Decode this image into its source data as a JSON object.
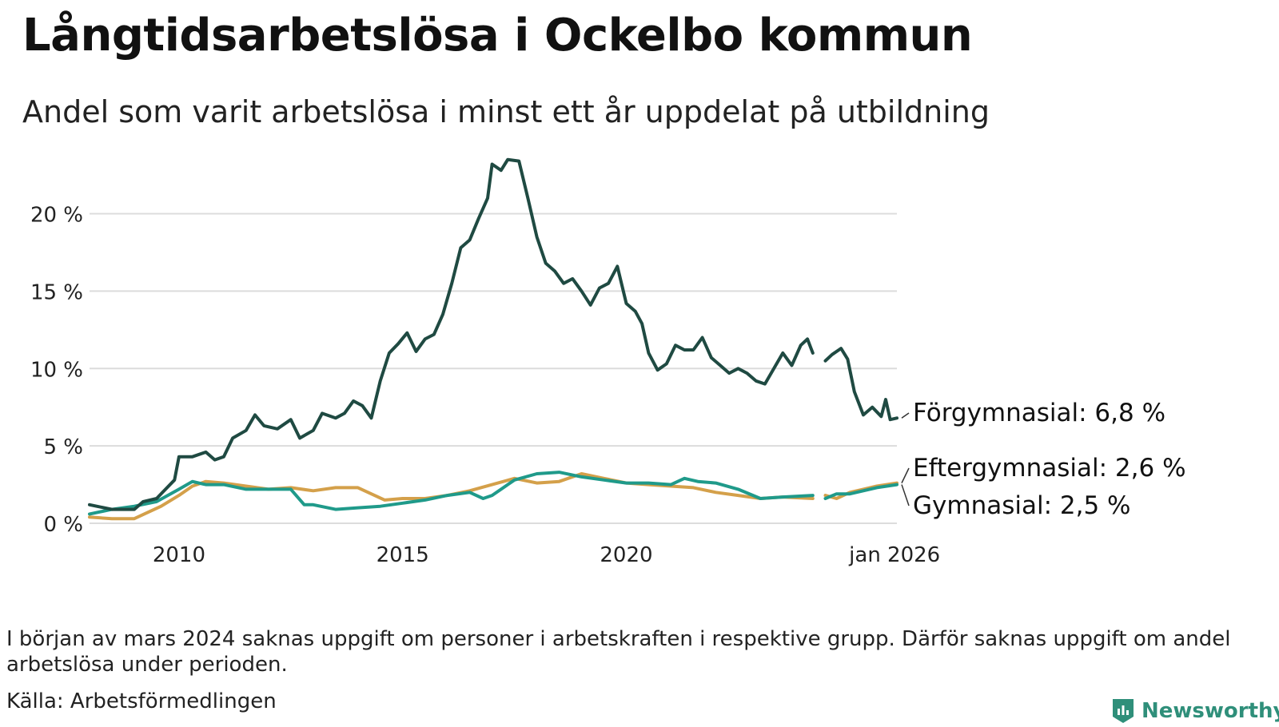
{
  "title": "Långtidsarbetslösa i Ockelbo kommun",
  "subtitle": "Andel som varit arbetslösa i minst ett år uppdelat på utbildning",
  "note": "I början av mars 2024 saknas uppgift om personer i arbetskraften i respektive grupp. Därför saknas uppgift om andel arbetslösa under perioden.",
  "source": "Källa: Arbetsförmedlingen",
  "logo": "Newsworthy",
  "chart_data": {
    "type": "line",
    "x_unit": "year (decimal)",
    "ylim": [
      0,
      24
    ],
    "xlim": [
      2008.0,
      2026.05
    ],
    "y_ticks": [
      {
        "value": 0,
        "label": "0 %"
      },
      {
        "value": 5,
        "label": "5 %"
      },
      {
        "value": 10,
        "label": "10 %"
      },
      {
        "value": 15,
        "label": "15 %"
      },
      {
        "value": 20,
        "label": "20 %"
      }
    ],
    "x_ticks": [
      {
        "value": 2010,
        "label": "2010"
      },
      {
        "value": 2015,
        "label": "2015"
      },
      {
        "value": 2020,
        "label": "2020"
      },
      {
        "value": 2026.0,
        "label": "jan 2026"
      }
    ],
    "grid": true,
    "missing_period": [
      2024.17,
      2024.45
    ],
    "series": [
      {
        "name": "Förgymnasial",
        "label": "Förgymnasial: 6,8 %",
        "color": "#1f4a42",
        "points": [
          [
            2008.0,
            1.2
          ],
          [
            2008.5,
            0.9
          ],
          [
            2009.0,
            0.9
          ],
          [
            2009.2,
            1.4
          ],
          [
            2009.5,
            1.6
          ],
          [
            2009.7,
            2.2
          ],
          [
            2009.9,
            2.8
          ],
          [
            2010.0,
            4.3
          ],
          [
            2010.3,
            4.3
          ],
          [
            2010.6,
            4.6
          ],
          [
            2010.8,
            4.1
          ],
          [
            2011.0,
            4.3
          ],
          [
            2011.2,
            5.5
          ],
          [
            2011.5,
            6.0
          ],
          [
            2011.7,
            7.0
          ],
          [
            2011.9,
            6.3
          ],
          [
            2012.2,
            6.1
          ],
          [
            2012.5,
            6.7
          ],
          [
            2012.7,
            5.5
          ],
          [
            2013.0,
            6.0
          ],
          [
            2013.2,
            7.1
          ],
          [
            2013.5,
            6.8
          ],
          [
            2013.7,
            7.1
          ],
          [
            2013.9,
            7.9
          ],
          [
            2014.1,
            7.6
          ],
          [
            2014.3,
            6.8
          ],
          [
            2014.5,
            9.2
          ],
          [
            2014.7,
            11.0
          ],
          [
            2014.9,
            11.6
          ],
          [
            2015.1,
            12.3
          ],
          [
            2015.3,
            11.1
          ],
          [
            2015.5,
            11.9
          ],
          [
            2015.7,
            12.2
          ],
          [
            2015.9,
            13.5
          ],
          [
            2016.1,
            15.5
          ],
          [
            2016.3,
            17.8
          ],
          [
            2016.5,
            18.3
          ],
          [
            2016.7,
            19.7
          ],
          [
            2016.9,
            21.0
          ],
          [
            2017.0,
            23.2
          ],
          [
            2017.2,
            22.8
          ],
          [
            2017.35,
            23.5
          ],
          [
            2017.6,
            23.4
          ],
          [
            2017.8,
            21.0
          ],
          [
            2018.0,
            18.5
          ],
          [
            2018.2,
            16.8
          ],
          [
            2018.4,
            16.3
          ],
          [
            2018.6,
            15.5
          ],
          [
            2018.8,
            15.8
          ],
          [
            2019.0,
            15.0
          ],
          [
            2019.2,
            14.1
          ],
          [
            2019.4,
            15.2
          ],
          [
            2019.6,
            15.5
          ],
          [
            2019.8,
            16.6
          ],
          [
            2020.0,
            14.2
          ],
          [
            2020.2,
            13.7
          ],
          [
            2020.35,
            12.9
          ],
          [
            2020.5,
            11.0
          ],
          [
            2020.7,
            9.9
          ],
          [
            2020.9,
            10.3
          ],
          [
            2021.1,
            11.5
          ],
          [
            2021.3,
            11.2
          ],
          [
            2021.5,
            11.2
          ],
          [
            2021.7,
            12.0
          ],
          [
            2021.9,
            10.7
          ],
          [
            2022.1,
            10.2
          ],
          [
            2022.3,
            9.7
          ],
          [
            2022.5,
            10.0
          ],
          [
            2022.7,
            9.7
          ],
          [
            2022.9,
            9.2
          ],
          [
            2023.1,
            9.0
          ],
          [
            2023.3,
            10.0
          ],
          [
            2023.5,
            11.0
          ],
          [
            2023.7,
            10.2
          ],
          [
            2023.9,
            11.5
          ],
          [
            2024.05,
            11.9
          ],
          [
            2024.17,
            11.0
          ],
          [
            2024.45,
            10.5
          ],
          [
            2024.6,
            10.9
          ],
          [
            2024.8,
            11.3
          ],
          [
            2024.95,
            10.6
          ],
          [
            2025.1,
            8.5
          ],
          [
            2025.3,
            7.0
          ],
          [
            2025.5,
            7.5
          ],
          [
            2025.7,
            6.9
          ],
          [
            2025.8,
            8.0
          ],
          [
            2025.9,
            6.7
          ],
          [
            2026.05,
            6.8
          ]
        ]
      },
      {
        "name": "Gymnasial",
        "label": "Gymnasial: 2,5 %",
        "color": "#1f9a8a",
        "points": [
          [
            2008.0,
            0.6
          ],
          [
            2008.5,
            0.9
          ],
          [
            2009.0,
            1.1
          ],
          [
            2009.5,
            1.4
          ],
          [
            2010.0,
            2.2
          ],
          [
            2010.3,
            2.7
          ],
          [
            2010.6,
            2.5
          ],
          [
            2011.0,
            2.5
          ],
          [
            2011.5,
            2.2
          ],
          [
            2012.0,
            2.2
          ],
          [
            2012.5,
            2.2
          ],
          [
            2012.8,
            1.2
          ],
          [
            2013.0,
            1.2
          ],
          [
            2013.5,
            0.9
          ],
          [
            2014.0,
            1.0
          ],
          [
            2014.5,
            1.1
          ],
          [
            2015.0,
            1.3
          ],
          [
            2015.5,
            1.5
          ],
          [
            2016.0,
            1.8
          ],
          [
            2016.5,
            2.0
          ],
          [
            2016.8,
            1.6
          ],
          [
            2017.0,
            1.8
          ],
          [
            2017.5,
            2.8
          ],
          [
            2018.0,
            3.2
          ],
          [
            2018.5,
            3.3
          ],
          [
            2019.0,
            3.0
          ],
          [
            2019.5,
            2.8
          ],
          [
            2020.0,
            2.6
          ],
          [
            2020.5,
            2.6
          ],
          [
            2021.0,
            2.5
          ],
          [
            2021.3,
            2.9
          ],
          [
            2021.6,
            2.7
          ],
          [
            2022.0,
            2.6
          ],
          [
            2022.5,
            2.2
          ],
          [
            2023.0,
            1.6
          ],
          [
            2023.5,
            1.7
          ],
          [
            2024.17,
            1.8
          ],
          [
            2024.45,
            1.6
          ],
          [
            2024.7,
            1.9
          ],
          [
            2025.0,
            1.9
          ],
          [
            2025.3,
            2.1
          ],
          [
            2025.6,
            2.3
          ],
          [
            2026.05,
            2.5
          ]
        ]
      },
      {
        "name": "Eftergymnasial",
        "label": "Eftergymnasial: 2,6 %",
        "color": "#d4a04a",
        "points": [
          [
            2008.0,
            0.4
          ],
          [
            2008.5,
            0.3
          ],
          [
            2009.0,
            0.3
          ],
          [
            2009.3,
            0.7
          ],
          [
            2009.6,
            1.1
          ],
          [
            2010.0,
            1.8
          ],
          [
            2010.3,
            2.4
          ],
          [
            2010.6,
            2.7
          ],
          [
            2011.0,
            2.6
          ],
          [
            2011.5,
            2.4
          ],
          [
            2012.0,
            2.2
          ],
          [
            2012.5,
            2.3
          ],
          [
            2013.0,
            2.1
          ],
          [
            2013.5,
            2.3
          ],
          [
            2014.0,
            2.3
          ],
          [
            2014.3,
            1.9
          ],
          [
            2014.6,
            1.5
          ],
          [
            2015.0,
            1.6
          ],
          [
            2015.5,
            1.6
          ],
          [
            2016.0,
            1.8
          ],
          [
            2016.5,
            2.1
          ],
          [
            2017.0,
            2.5
          ],
          [
            2017.5,
            2.9
          ],
          [
            2018.0,
            2.6
          ],
          [
            2018.5,
            2.7
          ],
          [
            2019.0,
            3.2
          ],
          [
            2019.5,
            2.9
          ],
          [
            2020.0,
            2.6
          ],
          [
            2020.5,
            2.5
          ],
          [
            2021.0,
            2.4
          ],
          [
            2021.5,
            2.3
          ],
          [
            2022.0,
            2.0
          ],
          [
            2022.5,
            1.8
          ],
          [
            2023.0,
            1.6
          ],
          [
            2023.5,
            1.7
          ],
          [
            2024.17,
            1.6
          ],
          [
            2024.45,
            1.8
          ],
          [
            2024.7,
            1.6
          ],
          [
            2025.0,
            2.0
          ],
          [
            2025.3,
            2.2
          ],
          [
            2025.6,
            2.4
          ],
          [
            2026.05,
            2.6
          ]
        ]
      }
    ]
  }
}
